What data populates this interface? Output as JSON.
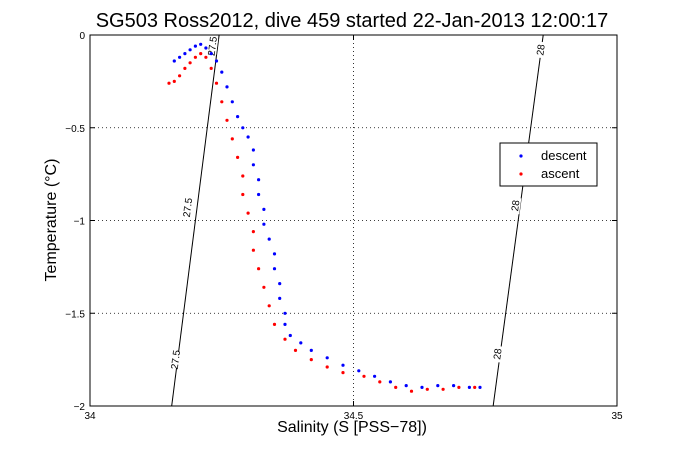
{
  "chart_data": {
    "type": "scatter",
    "title": "SG503 Ross2012, dive 459 started 22-Jan-2013 12:00:17",
    "xlabel": "Salinity (S [PSS−78])",
    "ylabel": "Temperature (°C)",
    "xlim": [
      34,
      35
    ],
    "ylim": [
      -2,
      0
    ],
    "xticks": [
      "34",
      "34.5",
      "35"
    ],
    "yticks": [
      "0",
      "−0.5",
      "−1",
      "−1.5",
      "−2"
    ],
    "grid": true,
    "grid_style": "dotted",
    "legend_position": "right",
    "series": [
      {
        "name": "descent",
        "color": "#0000ff",
        "marker": "dot",
        "points": [
          [
            34.16,
            -0.14
          ],
          [
            34.17,
            -0.12
          ],
          [
            34.18,
            -0.1
          ],
          [
            34.19,
            -0.08
          ],
          [
            34.2,
            -0.06
          ],
          [
            34.21,
            -0.05
          ],
          [
            34.22,
            -0.07
          ],
          [
            34.23,
            -0.1
          ],
          [
            34.24,
            -0.14
          ],
          [
            34.25,
            -0.2
          ],
          [
            34.26,
            -0.28
          ],
          [
            34.27,
            -0.36
          ],
          [
            34.28,
            -0.44
          ],
          [
            34.29,
            -0.5
          ],
          [
            34.3,
            -0.55
          ],
          [
            34.31,
            -0.62
          ],
          [
            34.31,
            -0.7
          ],
          [
            34.32,
            -0.78
          ],
          [
            34.32,
            -0.86
          ],
          [
            34.33,
            -0.94
          ],
          [
            34.33,
            -1.02
          ],
          [
            34.34,
            -1.1
          ],
          [
            34.35,
            -1.18
          ],
          [
            34.35,
            -1.26
          ],
          [
            34.36,
            -1.34
          ],
          [
            34.36,
            -1.42
          ],
          [
            34.37,
            -1.5
          ],
          [
            34.37,
            -1.56
          ],
          [
            34.38,
            -1.62
          ],
          [
            34.4,
            -1.66
          ],
          [
            34.42,
            -1.7
          ],
          [
            34.45,
            -1.74
          ],
          [
            34.48,
            -1.78
          ],
          [
            34.51,
            -1.81
          ],
          [
            34.54,
            -1.84
          ],
          [
            34.57,
            -1.87
          ],
          [
            34.6,
            -1.89
          ],
          [
            34.63,
            -1.9
          ],
          [
            34.66,
            -1.89
          ],
          [
            34.69,
            -1.89
          ],
          [
            34.72,
            -1.9
          ],
          [
            34.74,
            -1.9
          ]
        ]
      },
      {
        "name": "ascent",
        "color": "#ff0000",
        "marker": "dot",
        "points": [
          [
            34.15,
            -0.26
          ],
          [
            34.16,
            -0.25
          ],
          [
            34.17,
            -0.22
          ],
          [
            34.18,
            -0.18
          ],
          [
            34.19,
            -0.15
          ],
          [
            34.2,
            -0.12
          ],
          [
            34.21,
            -0.1
          ],
          [
            34.22,
            -0.12
          ],
          [
            34.23,
            -0.18
          ],
          [
            34.24,
            -0.26
          ],
          [
            34.25,
            -0.36
          ],
          [
            34.26,
            -0.46
          ],
          [
            34.27,
            -0.56
          ],
          [
            34.28,
            -0.66
          ],
          [
            34.29,
            -0.76
          ],
          [
            34.29,
            -0.86
          ],
          [
            34.3,
            -0.96
          ],
          [
            34.31,
            -1.06
          ],
          [
            34.31,
            -1.16
          ],
          [
            34.32,
            -1.26
          ],
          [
            34.33,
            -1.36
          ],
          [
            34.34,
            -1.46
          ],
          [
            34.35,
            -1.56
          ],
          [
            34.37,
            -1.64
          ],
          [
            34.39,
            -1.7
          ],
          [
            34.42,
            -1.75
          ],
          [
            34.45,
            -1.79
          ],
          [
            34.48,
            -1.82
          ],
          [
            34.52,
            -1.84
          ],
          [
            34.55,
            -1.87
          ],
          [
            34.58,
            -1.9
          ],
          [
            34.61,
            -1.92
          ],
          [
            34.64,
            -1.91
          ],
          [
            34.67,
            -1.91
          ],
          [
            34.7,
            -1.9
          ],
          [
            34.73,
            -1.9
          ]
        ]
      }
    ],
    "contours": [
      {
        "label": "27.5",
        "points": [
          [
            34.155,
            -2.0
          ],
          [
            34.245,
            0.0
          ]
        ],
        "labels_at": [
          [
            34.162,
            -1.75
          ],
          [
            34.185,
            -0.93
          ],
          [
            34.232,
            -0.06
          ]
        ]
      },
      {
        "label": "28",
        "points": [
          [
            34.765,
            -2.0
          ],
          [
            34.86,
            0.0
          ]
        ],
        "labels_at": [
          [
            34.773,
            -1.72
          ],
          [
            34.807,
            -0.92
          ],
          [
            34.855,
            -0.08
          ]
        ]
      }
    ]
  }
}
